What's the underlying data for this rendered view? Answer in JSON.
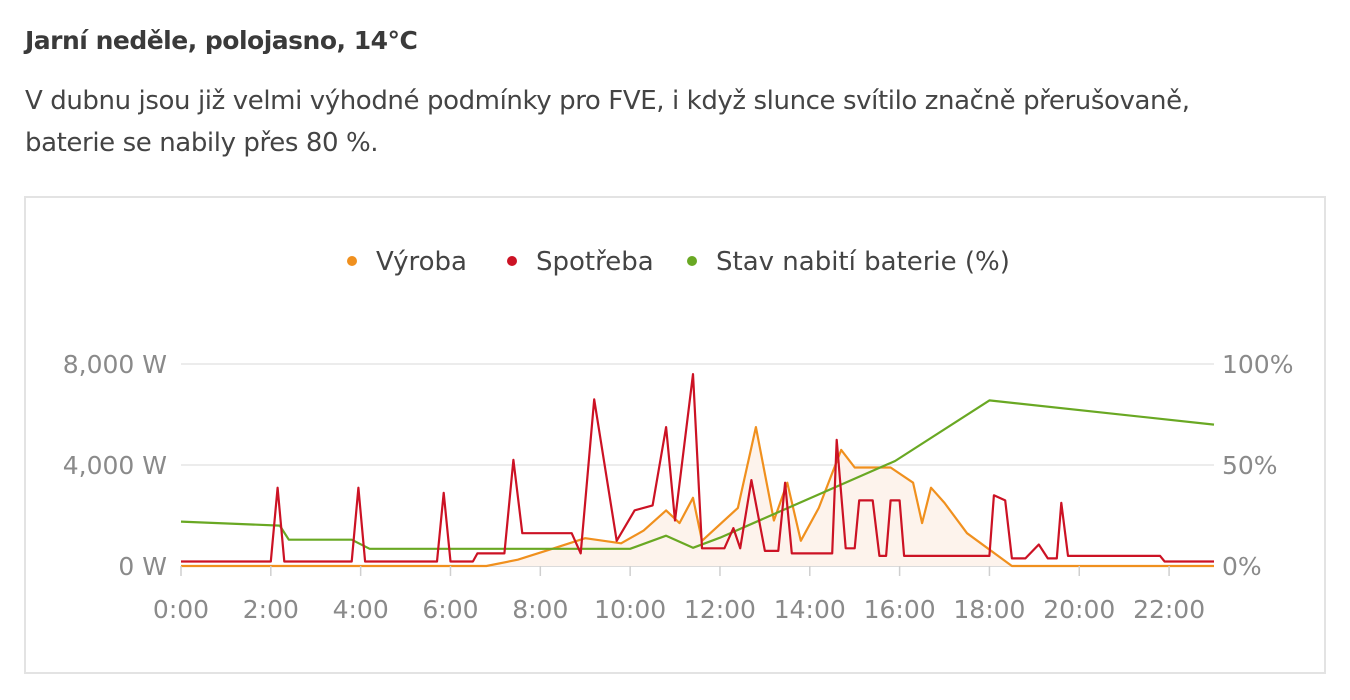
{
  "header": {
    "title": "Jarní neděle, polojasno, 14°C",
    "desc_line1": "V dubnu jsou již velmi výhodné podmínky pro FVE,  i když slunce svítilo značně přerušovaně,",
    "desc_line2": "baterie se nabily přes 80 %."
  },
  "chart_data": {
    "type": "line",
    "x_ticks": [
      "0:00",
      "2:00",
      "4:00",
      "6:00",
      "8:00",
      "10:00",
      "12:00",
      "14:00",
      "16:00",
      "18:00",
      "20:00",
      "22:00"
    ],
    "y_left_ticks": [
      "0 W",
      "4,000 W",
      "8,000 W"
    ],
    "y_right_ticks": [
      "0%",
      "50%",
      "100%"
    ],
    "ylim_left": [
      0,
      8000
    ],
    "ylim_right": [
      0,
      100
    ],
    "xlim_hours": [
      0,
      23
    ],
    "grid": "horizontal",
    "legend_position": "top-center",
    "series": [
      {
        "name": "Výroba",
        "color": "#f0901e",
        "fill": "#fdf3ec",
        "axis": "left",
        "points": [
          [
            0,
            0
          ],
          [
            6.8,
            0
          ],
          [
            7.5,
            250
          ],
          [
            8.3,
            700
          ],
          [
            9,
            1100
          ],
          [
            9.8,
            900
          ],
          [
            10.3,
            1400
          ],
          [
            10.8,
            2200
          ],
          [
            11.1,
            1700
          ],
          [
            11.4,
            2700
          ],
          [
            11.6,
            1000
          ],
          [
            12.4,
            2300
          ],
          [
            12.8,
            5500
          ],
          [
            13.2,
            1800
          ],
          [
            13.5,
            3300
          ],
          [
            13.8,
            1000
          ],
          [
            14.2,
            2300
          ],
          [
            14.7,
            4600
          ],
          [
            15,
            3900
          ],
          [
            15.8,
            3900
          ],
          [
            16.3,
            3300
          ],
          [
            16.5,
            1700
          ],
          [
            16.7,
            3100
          ],
          [
            17,
            2500
          ],
          [
            17.5,
            1300
          ],
          [
            18.5,
            0
          ],
          [
            23,
            0
          ]
        ]
      },
      {
        "name": "Spotřeba",
        "color": "#cc1224",
        "axis": "left",
        "points": [
          [
            0,
            180
          ],
          [
            2,
            180
          ],
          [
            2.15,
            3100
          ],
          [
            2.3,
            180
          ],
          [
            3.8,
            180
          ],
          [
            3.95,
            3100
          ],
          [
            4.1,
            180
          ],
          [
            5.7,
            180
          ],
          [
            5.85,
            2900
          ],
          [
            6,
            180
          ],
          [
            6.5,
            180
          ],
          [
            6.6,
            500
          ],
          [
            7.2,
            500
          ],
          [
            7.4,
            4200
          ],
          [
            7.6,
            1300
          ],
          [
            8.7,
            1300
          ],
          [
            8.9,
            500
          ],
          [
            9.2,
            6600
          ],
          [
            9.7,
            1000
          ],
          [
            10.1,
            2200
          ],
          [
            10.5,
            2400
          ],
          [
            10.8,
            5500
          ],
          [
            11,
            1800
          ],
          [
            11.4,
            7600
          ],
          [
            11.6,
            700
          ],
          [
            12.1,
            700
          ],
          [
            12.3,
            1500
          ],
          [
            12.45,
            700
          ],
          [
            12.7,
            3400
          ],
          [
            13,
            600
          ],
          [
            13.3,
            600
          ],
          [
            13.45,
            3300
          ],
          [
            13.6,
            500
          ],
          [
            14.5,
            500
          ],
          [
            14.6,
            5000
          ],
          [
            14.8,
            700
          ],
          [
            15,
            700
          ],
          [
            15.1,
            2600
          ],
          [
            15.4,
            2600
          ],
          [
            15.55,
            400
          ],
          [
            15.7,
            400
          ],
          [
            15.8,
            2600
          ],
          [
            16,
            2600
          ],
          [
            16.1,
            400
          ],
          [
            18,
            400
          ],
          [
            18.1,
            2800
          ],
          [
            18.35,
            2600
          ],
          [
            18.5,
            300
          ],
          [
            18.8,
            300
          ],
          [
            19.1,
            850
          ],
          [
            19.3,
            300
          ],
          [
            19.5,
            300
          ],
          [
            19.6,
            2500
          ],
          [
            19.75,
            400
          ],
          [
            21.8,
            400
          ],
          [
            21.9,
            180
          ],
          [
            23,
            180
          ]
        ]
      },
      {
        "name": "Stav nabití baterie (%)",
        "color": "#69a823",
        "axis": "right",
        "points": [
          [
            0,
            22
          ],
          [
            2.2,
            20
          ],
          [
            2.4,
            13
          ],
          [
            3.8,
            13
          ],
          [
            4.2,
            8.5
          ],
          [
            10,
            8.5
          ],
          [
            10.8,
            15
          ],
          [
            11.4,
            9
          ],
          [
            12,
            14
          ],
          [
            15.9,
            52
          ],
          [
            18,
            82
          ],
          [
            23,
            70
          ]
        ]
      }
    ]
  }
}
